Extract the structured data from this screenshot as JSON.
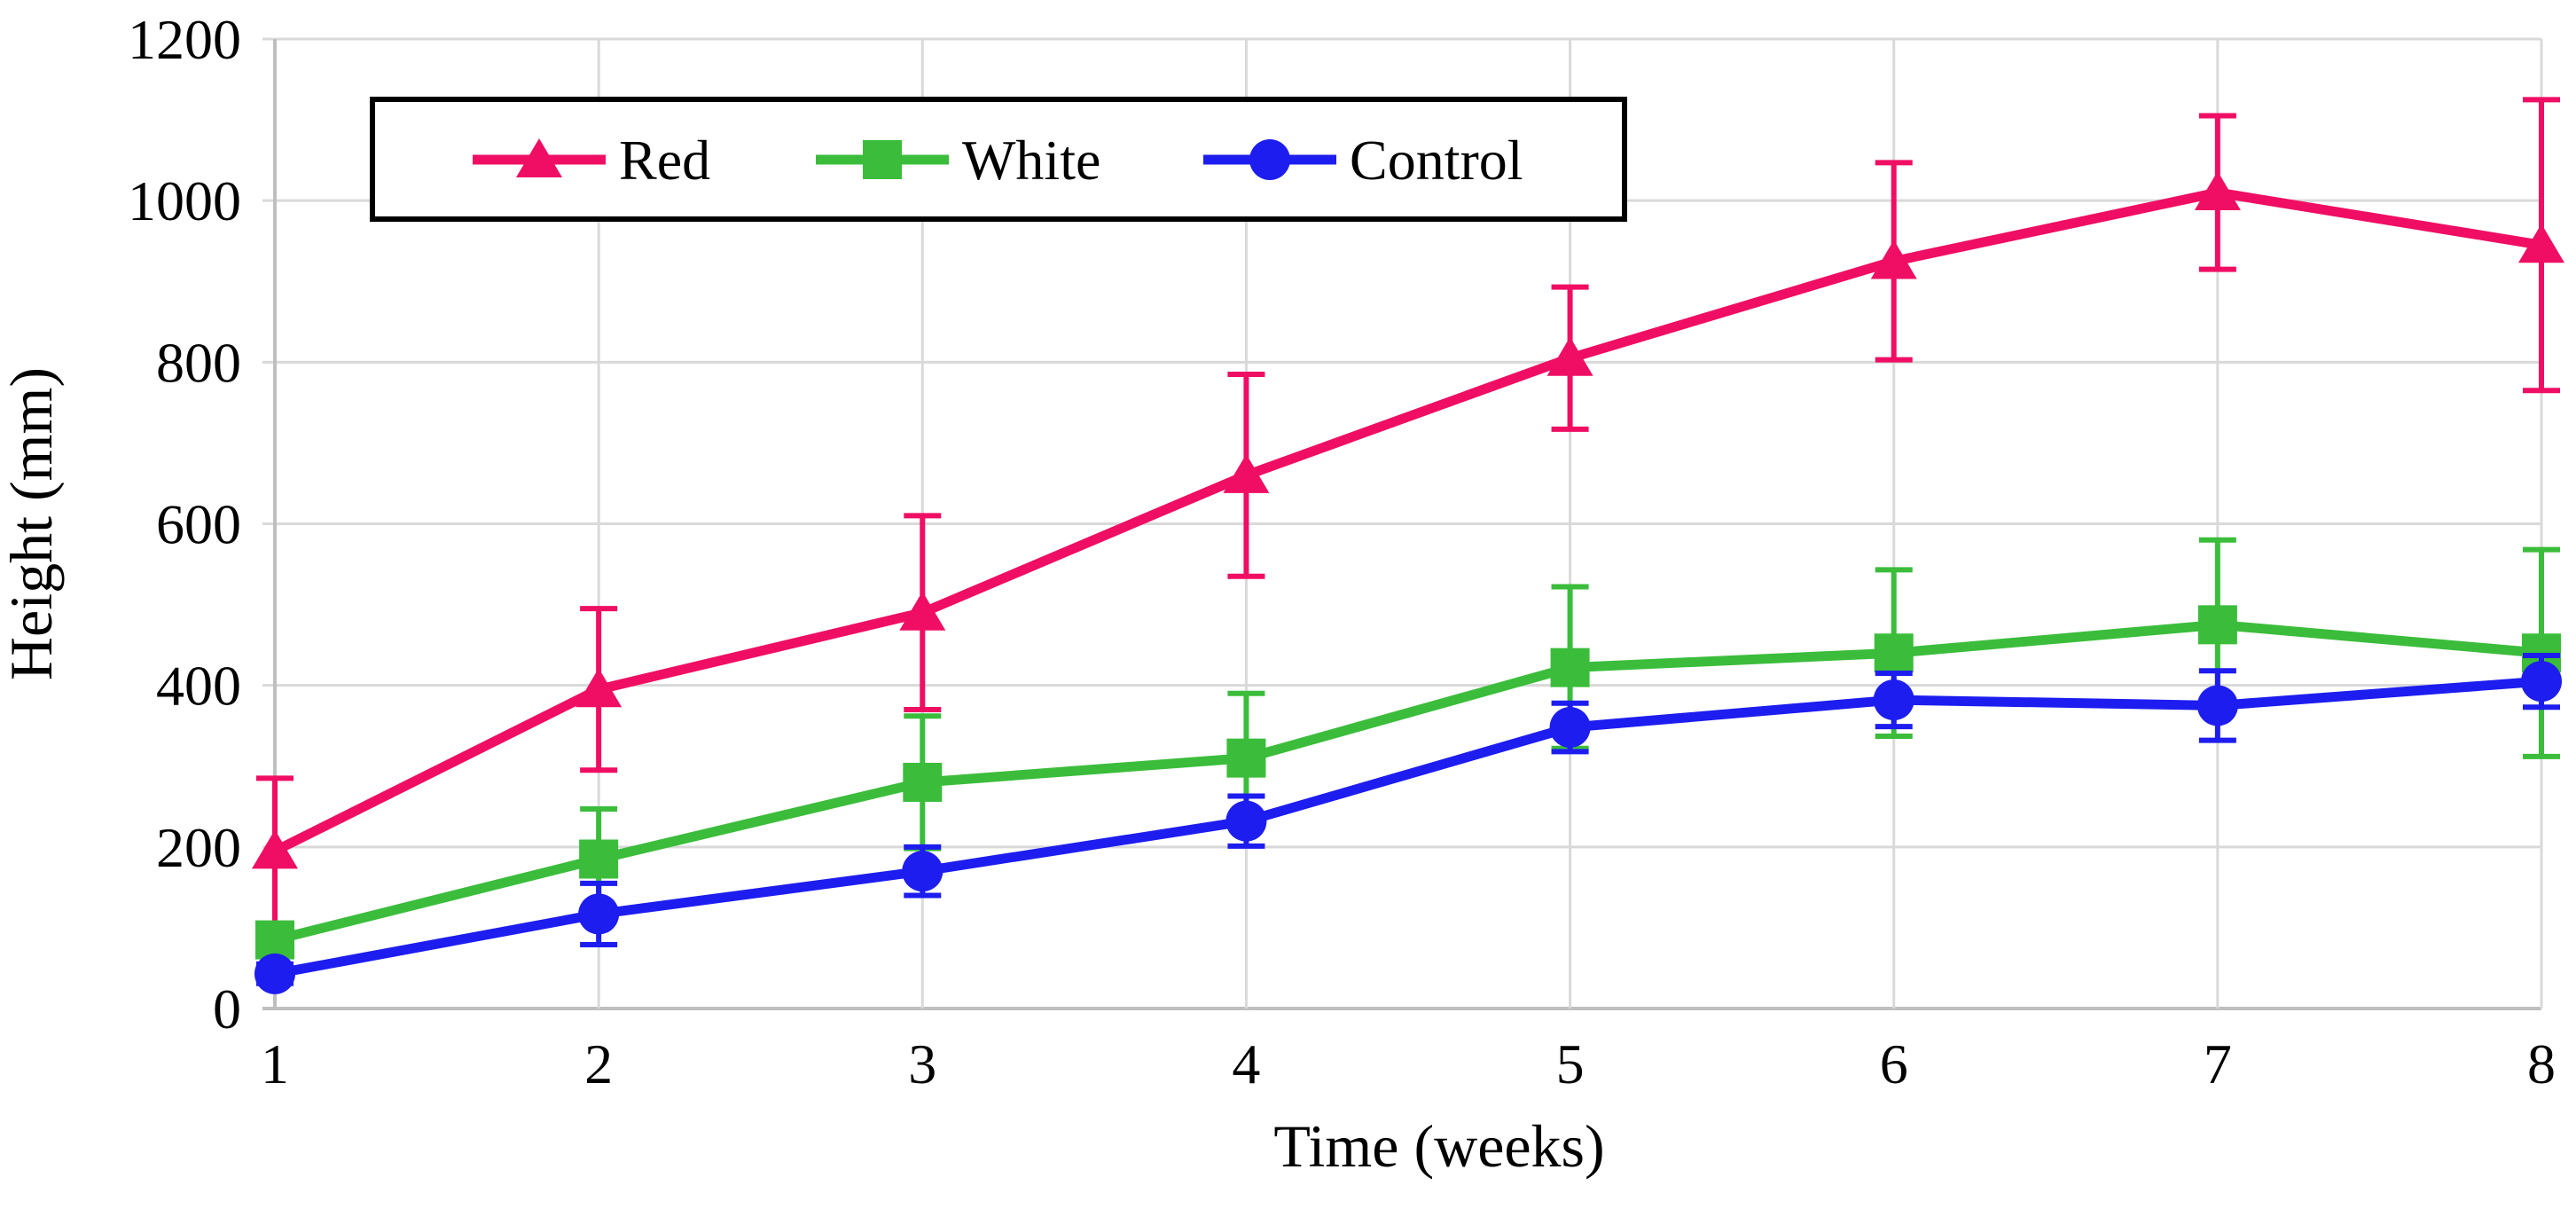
{
  "chart_data": {
    "type": "line",
    "title": "",
    "xlabel": "Time (weeks)",
    "ylabel": "Height (mm)",
    "x": [
      1,
      2,
      3,
      4,
      5,
      6,
      7,
      8
    ],
    "xlim": [
      1,
      8
    ],
    "ylim": [
      0,
      1200
    ],
    "yticks": [
      0,
      200,
      400,
      600,
      800,
      1000,
      1200
    ],
    "grid": true,
    "grid_color": "#D9D9D9",
    "axis_color": "#BFBFBF",
    "text_color": "#000000",
    "legend_position": "top-left-inside",
    "legend_border_color": "#000000",
    "series": [
      {
        "name": "Red",
        "color": "#EF0E63",
        "marker": "triangle",
        "values": [
          195,
          395,
          490,
          660,
          805,
          925,
          1010,
          945
        ],
        "errors": [
          90,
          100,
          120,
          125,
          88,
          122,
          95,
          180
        ]
      },
      {
        "name": "White",
        "color": "#3BBD3B",
        "marker": "square",
        "values": [
          85,
          185,
          280,
          310,
          422,
          440,
          475,
          440
        ],
        "errors": [
          20,
          62,
          82,
          80,
          100,
          103,
          105,
          128
        ]
      },
      {
        "name": "Control",
        "color": "#1D1DEF",
        "marker": "circle",
        "values": [
          43,
          117,
          170,
          232,
          348,
          382,
          375,
          405
        ],
        "errors": [
          12,
          38,
          30,
          31,
          30,
          33,
          43,
          32
        ]
      }
    ]
  }
}
